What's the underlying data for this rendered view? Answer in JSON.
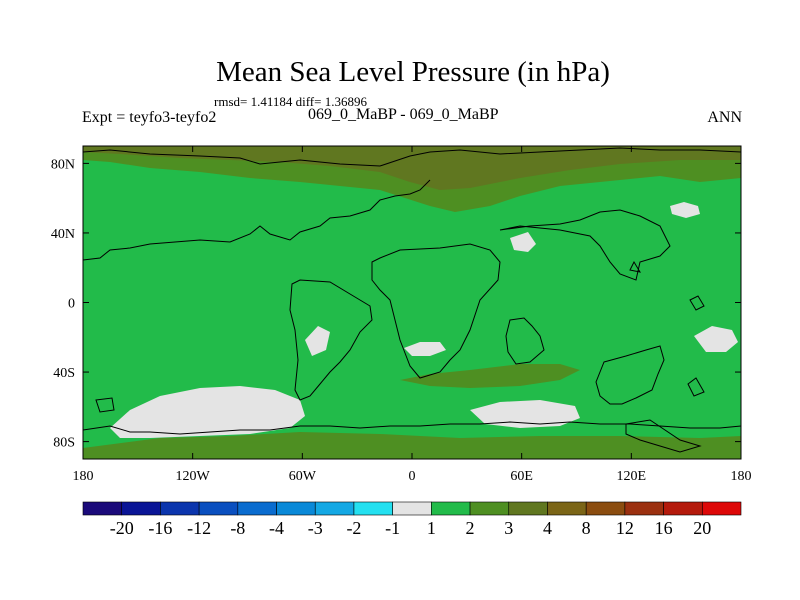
{
  "chart_data": {
    "type": "heatmap",
    "title": "Mean Sea Level Pressure (in hPa)",
    "subtitle": "rmsd= 1.41184 diff= 1.36896",
    "left_label": "Expt = teyfo3-teyfo2",
    "center_label": "069_0_MaBP - 069_0_MaBP",
    "right_label": "ANN",
    "x_ticks": [
      {
        "value": -180,
        "label": "180"
      },
      {
        "value": -120,
        "label": "120W"
      },
      {
        "value": -60,
        "label": "60W"
      },
      {
        "value": 0,
        "label": "0"
      },
      {
        "value": 60,
        "label": "60E"
      },
      {
        "value": 120,
        "label": "120E"
      },
      {
        "value": 180,
        "label": "180"
      }
    ],
    "y_ticks": [
      {
        "value": 80,
        "label": "80N"
      },
      {
        "value": 40,
        "label": "40N"
      },
      {
        "value": 0,
        "label": "0"
      },
      {
        "value": -40,
        "label": "40S"
      },
      {
        "value": -80,
        "label": "80S"
      }
    ],
    "xlim": [
      -180,
      180
    ],
    "ylim": [
      -90,
      90
    ],
    "dominant_value_range": [
      1,
      2
    ],
    "colorbar": {
      "labels": [
        "-20",
        "-16",
        "-12",
        "-8",
        "-4",
        "-3",
        "-2",
        "-1",
        "1",
        "2",
        "3",
        "4",
        "8",
        "12",
        "16",
        "20"
      ],
      "colors": [
        "#1b0a7a",
        "#0a1596",
        "#0b35ad",
        "#0a4fbf",
        "#0a6ccf",
        "#0a89d8",
        "#14a8e4",
        "#24e0f0",
        "#e4e4e4",
        "#22bb4a",
        "#4e8f22",
        "#607720",
        "#7b6517",
        "#8b4d10",
        "#9b3010",
        "#b41a0c",
        "#dd0808"
      ]
    }
  }
}
